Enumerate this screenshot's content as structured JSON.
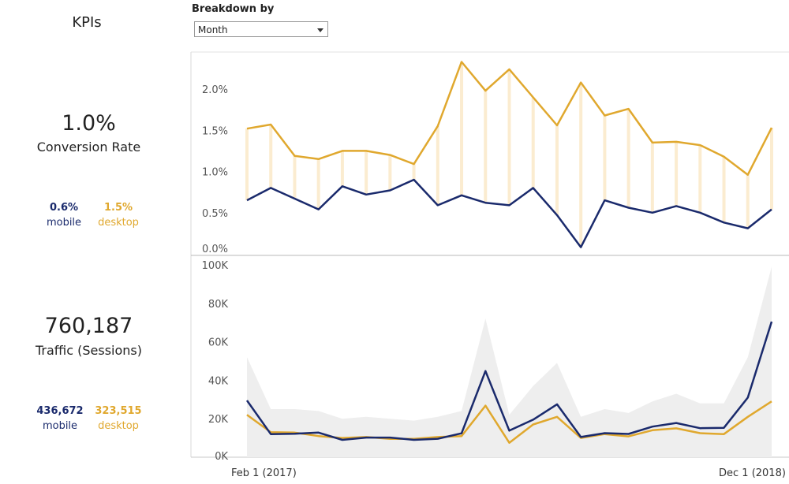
{
  "kpis": {
    "title": "KPIs",
    "conversion": {
      "value": "1.0%",
      "label": "Conversion Rate",
      "mobile_value": "0.6%",
      "mobile_label": "mobile",
      "desktop_value": "1.5%",
      "desktop_label": "desktop"
    },
    "traffic": {
      "value": "760,187",
      "label": "Traffic (Sessions)",
      "mobile_value": "436,672",
      "mobile_label": "mobile",
      "desktop_value": "323,515",
      "desktop_label": "desktop"
    }
  },
  "controls": {
    "breakdown_label": "Breakdown by",
    "breakdown_value": "Month"
  },
  "x_axis": {
    "first_label": "Feb 1 (2017)",
    "last_label": "Dec 1 (2018)"
  },
  "colors": {
    "mobile": "#1a2a6c",
    "desktop": "#e0a82e",
    "band": "#fbecd0",
    "area": "#eeeeee"
  },
  "chart_data": [
    {
      "type": "line",
      "name": "conversion-rate",
      "x": [
        "2017-02",
        "2017-03",
        "2017-04",
        "2017-05",
        "2017-06",
        "2017-07",
        "2017-08",
        "2017-09",
        "2017-10",
        "2017-11",
        "2017-12",
        "2018-01",
        "2018-02",
        "2018-03",
        "2018-04",
        "2018-05",
        "2018-06",
        "2018-07",
        "2018-08",
        "2018-09",
        "2018-10",
        "2018-11",
        "2018-12"
      ],
      "series": [
        {
          "name": "desktop",
          "values": [
            1.52,
            1.57,
            1.19,
            1.15,
            1.25,
            1.25,
            1.2,
            1.09,
            1.55,
            2.33,
            1.98,
            2.24,
            1.9,
            1.56,
            2.08,
            1.68,
            1.76,
            1.35,
            1.36,
            1.32,
            1.18,
            0.96,
            1.53
          ]
        },
        {
          "name": "mobile",
          "values": [
            0.65,
            0.8,
            0.67,
            0.54,
            0.82,
            0.72,
            0.77,
            0.9,
            0.59,
            0.71,
            0.62,
            0.59,
            0.8,
            0.47,
            0.08,
            0.65,
            0.56,
            0.5,
            0.58,
            0.5,
            0.38,
            0.31,
            0.54
          ]
        }
      ],
      "yticks": [
        "0.0%",
        "0.5%",
        "1.0%",
        "1.5%",
        "2.0%"
      ],
      "ylim": [
        0,
        2.45
      ]
    },
    {
      "type": "area",
      "name": "traffic",
      "x": [
        "2017-02",
        "2017-03",
        "2017-04",
        "2017-05",
        "2017-06",
        "2017-07",
        "2017-08",
        "2017-09",
        "2017-10",
        "2017-11",
        "2017-12",
        "2018-01",
        "2018-02",
        "2018-03",
        "2018-04",
        "2018-05",
        "2018-06",
        "2018-07",
        "2018-08",
        "2018-09",
        "2018-10",
        "2018-11",
        "2018-12"
      ],
      "series": [
        {
          "name": "total",
          "values": [
            52000,
            25000,
            25000,
            24000,
            20000,
            21000,
            20000,
            19000,
            21000,
            24000,
            72000,
            22000,
            37000,
            49000,
            21000,
            25000,
            23000,
            29000,
            33000,
            28000,
            28000,
            52000,
            99000
          ]
        },
        {
          "name": "mobile",
          "values": [
            29500,
            12000,
            12200,
            12800,
            9000,
            10200,
            10200,
            9000,
            9600,
            12400,
            44800,
            13800,
            19500,
            27500,
            10500,
            12500,
            12100,
            15900,
            17800,
            15100,
            15300,
            31000,
            70500
          ]
        },
        {
          "name": "desktop",
          "values": [
            22000,
            13000,
            12800,
            11000,
            10000,
            10500,
            9500,
            9500,
            10500,
            11000,
            26800,
            7500,
            17000,
            21000,
            10000,
            12000,
            10800,
            14000,
            15000,
            12500,
            12000,
            21000,
            29000
          ]
        }
      ],
      "yticks": [
        "0K",
        "20K",
        "40K",
        "60K",
        "80K",
        "100K"
      ],
      "ylim": [
        0,
        100000
      ]
    }
  ]
}
